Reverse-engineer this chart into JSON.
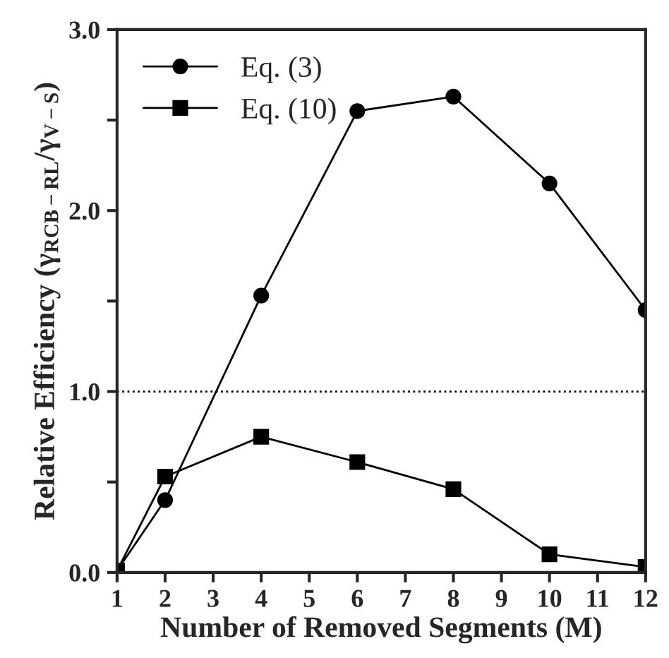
{
  "chart_data": {
    "type": "line",
    "xlabel": "Number of Removed Segments (M)",
    "ylabel": "Relative Efficiency (γ$_{RCB−RL}$/γ$_{V−S}$)",
    "series": [
      {
        "name": "Eq. (3)",
        "color": "#000000",
        "marker": "circle",
        "x": [
          1,
          2,
          4,
          6,
          8,
          10,
          12
        ],
        "values": [
          0.01,
          0.4,
          1.53,
          2.55,
          2.63,
          2.15,
          1.45
        ]
      },
      {
        "name": "Eq. (10)",
        "color": "#000000",
        "marker": "square",
        "x": [
          1,
          2,
          4,
          6,
          8,
          10,
          12
        ],
        "values": [
          0.01,
          0.53,
          0.75,
          0.61,
          0.46,
          0.1,
          0.03
        ]
      }
    ],
    "xlim": [
      1,
      12
    ],
    "xticks": [
      1,
      2,
      3,
      4,
      5,
      6,
      7,
      8,
      9,
      10,
      11,
      12
    ],
    "ylim": [
      0,
      3
    ],
    "yticks": [
      {
        "value": 0,
        "label": "0.0"
      },
      {
        "value": 0.5,
        "label": null
      },
      {
        "value": 1,
        "label": "1.0"
      },
      {
        "value": 1.5,
        "label": null
      },
      {
        "value": 2,
        "label": "2.0"
      },
      {
        "value": 2.5,
        "label": null
      },
      {
        "value": 3,
        "label": "3.0"
      }
    ],
    "ref_lines": [
      {
        "axis": "y",
        "value": 1,
        "label": null,
        "line_style": "dotted",
        "color": "#000000"
      }
    ],
    "grid": false,
    "legend": "top left",
    "line_style": "solid"
  }
}
